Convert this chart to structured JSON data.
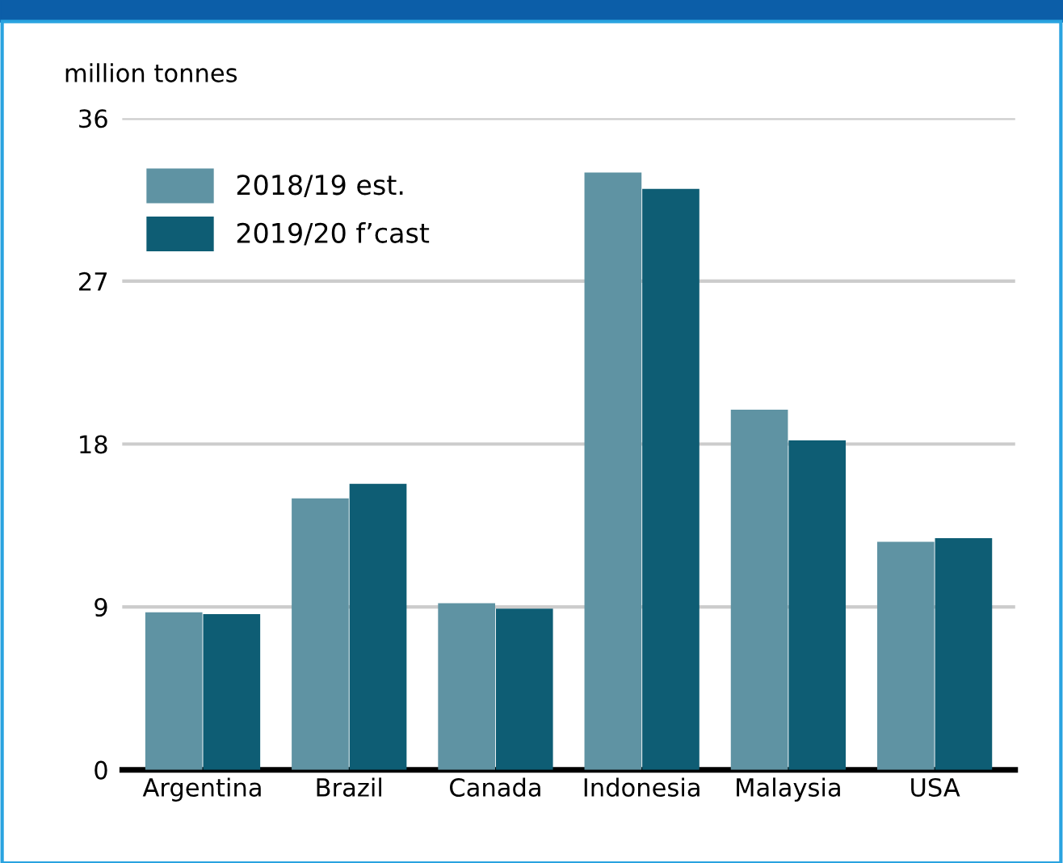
{
  "chart_data": {
    "type": "bar",
    "ylabel": "million tonnes",
    "categories": [
      "Argentina",
      "Brazil",
      "Canada",
      "Indonesia",
      "Malaysia",
      "USA"
    ],
    "series": [
      {
        "name": "2018/19 est.",
        "color": "#5f93a3",
        "values": [
          8.7,
          15.0,
          9.2,
          33.0,
          19.9,
          12.6
        ]
      },
      {
        "name": "2019/20 f’cast",
        "color": "#0e5d74",
        "values": [
          8.6,
          15.8,
          8.9,
          32.1,
          18.2,
          12.8
        ]
      }
    ],
    "ylim": [
      0,
      36
    ],
    "yticks": [
      0,
      9,
      18,
      27,
      36
    ],
    "grid": "y",
    "legend": "top left"
  }
}
